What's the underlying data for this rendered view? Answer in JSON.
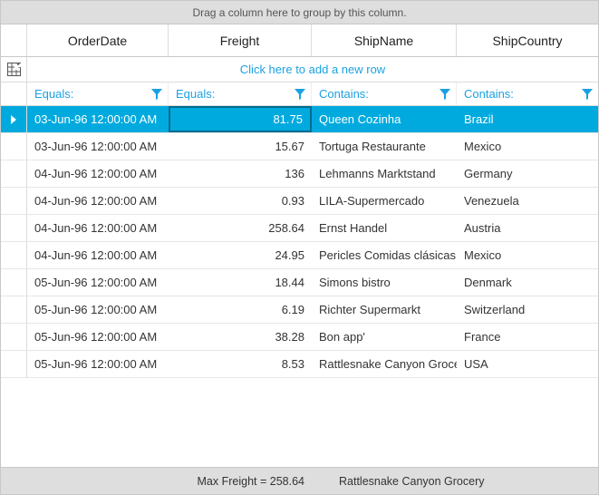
{
  "grid": {
    "group_panel_text": "Drag a column here to group by this column.",
    "new_row_text": "Click here to add a new row",
    "columns": {
      "orderdate": {
        "header": "OrderDate",
        "filter_op": "Equals:"
      },
      "freight": {
        "header": "Freight",
        "filter_op": "Equals:"
      },
      "shipname": {
        "header": "ShipName",
        "filter_op": "Contains:"
      },
      "shipcountry": {
        "header": "ShipCountry",
        "filter_op": "Contains:"
      }
    },
    "rows": [
      {
        "orderdate": "03-Jun-96 12:00:00 AM",
        "freight": "81.75",
        "shipname": "Queen Cozinha",
        "shipcountry": "Brazil",
        "selected": true,
        "editing_col": "freight"
      },
      {
        "orderdate": "03-Jun-96 12:00:00 AM",
        "freight": "15.67",
        "shipname": "Tortuga Restaurante",
        "shipcountry": "Mexico"
      },
      {
        "orderdate": "04-Jun-96 12:00:00 AM",
        "freight": "136",
        "shipname": "Lehmanns Marktstand",
        "shipcountry": "Germany"
      },
      {
        "orderdate": "04-Jun-96 12:00:00 AM",
        "freight": "0.93",
        "shipname": "LILA-Supermercado",
        "shipcountry": "Venezuela"
      },
      {
        "orderdate": "04-Jun-96 12:00:00 AM",
        "freight": "258.64",
        "shipname": "Ernst Handel",
        "shipcountry": "Austria"
      },
      {
        "orderdate": "04-Jun-96 12:00:00 AM",
        "freight": "24.95",
        "shipname": "Pericles Comidas clásicas",
        "shipcountry": "Mexico"
      },
      {
        "orderdate": "05-Jun-96 12:00:00 AM",
        "freight": "18.44",
        "shipname": "Simons bistro",
        "shipcountry": "Denmark"
      },
      {
        "orderdate": "05-Jun-96 12:00:00 AM",
        "freight": "6.19",
        "shipname": "Richter Supermarkt",
        "shipcountry": "Switzerland"
      },
      {
        "orderdate": "05-Jun-96 12:00:00 AM",
        "freight": "38.28",
        "shipname": "Bon app'",
        "shipcountry": "France"
      },
      {
        "orderdate": "05-Jun-96 12:00:00 AM",
        "freight": "8.53",
        "shipname": "Rattlesnake Canyon Grocery",
        "shipcountry": "USA"
      }
    ],
    "summary": {
      "freight_text": "Max Freight = 258.64",
      "shipname_text": "Rattlesnake Canyon Grocery"
    },
    "colors": {
      "accent": "#1ba1e2",
      "selection": "#00aade",
      "panel": "#dedede",
      "border": "#c8c8c8"
    }
  }
}
